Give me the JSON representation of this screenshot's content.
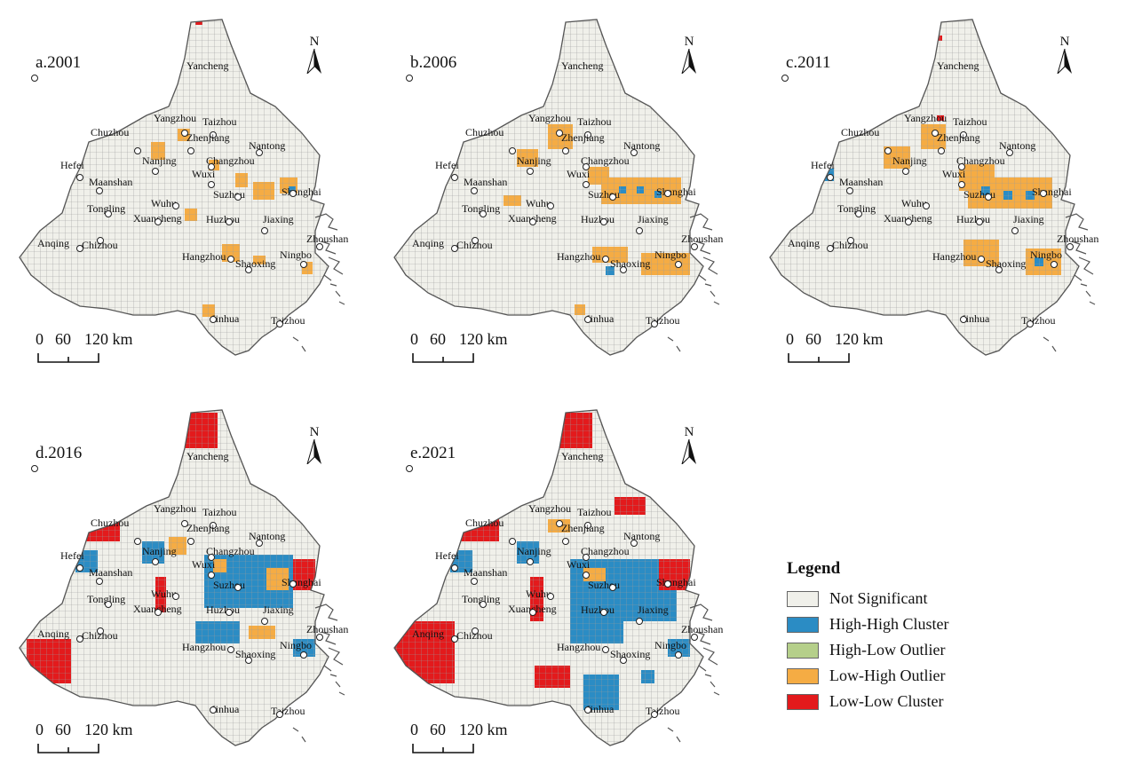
{
  "panels": [
    {
      "title": "a.2001"
    },
    {
      "title": "b.2006"
    },
    {
      "title": "c.2011"
    },
    {
      "title": "d.2016"
    },
    {
      "title": "e.2021"
    }
  ],
  "north_label": "N",
  "scale": {
    "labels": [
      "0",
      "60",
      "120 km"
    ]
  },
  "cities": [
    "Yancheng",
    "Yangzhou",
    "Taizhou",
    "Chuzhou",
    "Zhenjiang",
    "Nantong",
    "Nanjing",
    "Changzhou",
    "Hefei",
    "Wuxi",
    "Maanshan",
    "Suzhou",
    "Shanghai",
    "Wuhu",
    "Tongling",
    "Xuancheng",
    "Huzhou",
    "Jiaxing",
    "Anqing",
    "Chizhou",
    "Zhoushan",
    "Hangzhou",
    "Shaoxing",
    "Ningbo",
    "Jinhua",
    "Taizhou"
  ],
  "legend": {
    "title": "Legend",
    "items": [
      {
        "label": "Not Significant",
        "color": "#f0f0ea"
      },
      {
        "label": "High-High Cluster",
        "color": "#2b8cc4"
      },
      {
        "label": "High-Low Outlier",
        "color": "#b5cf8a"
      },
      {
        "label": "Low-High Outlier",
        "color": "#f5ac44"
      },
      {
        "label": "Low-Low Cluster",
        "color": "#e31a1c"
      }
    ]
  }
}
